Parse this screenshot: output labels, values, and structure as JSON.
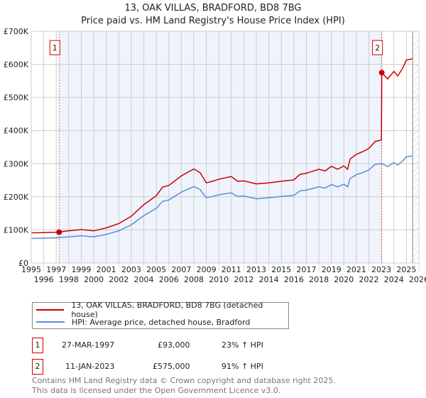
{
  "chart_data": {
    "type": "line",
    "title": "13, OAK VILLAS, BRADFORD, BD8 7BG",
    "subtitle": "Price paid vs. HM Land Registry's House Price Index (HPI)",
    "xlim": [
      1995,
      2026
    ],
    "ylim": [
      0,
      700000
    ],
    "x_ticks": [
      "1995",
      "1996",
      "1997",
      "1998",
      "1999",
      "2000",
      "2001",
      "2002",
      "2003",
      "2004",
      "2005",
      "2006",
      "2007",
      "2008",
      "2009",
      "2010",
      "2011",
      "2012",
      "2013",
      "2014",
      "2015",
      "2016",
      "2017",
      "2018",
      "2019",
      "2020",
      "2021",
      "2022",
      "2023",
      "2024",
      "2025",
      "2026"
    ],
    "y_ticks": [
      {
        "v": 0,
        "label": "£0"
      },
      {
        "v": 100000,
        "label": "£100K"
      },
      {
        "v": 200000,
        "label": "£200K"
      },
      {
        "v": 300000,
        "label": "£300K"
      },
      {
        "v": 400000,
        "label": "£400K"
      },
      {
        "v": 500000,
        "label": "£500K"
      },
      {
        "v": 600000,
        "label": "£600K"
      },
      {
        "v": 700000,
        "label": "£700K"
      }
    ],
    "grid": true,
    "x": [
      1995,
      1996,
      1997,
      1998,
      1999,
      2000,
      2001,
      2002,
      2003,
      2004,
      2005,
      2005.5,
      2006,
      2007,
      2008,
      2008.5,
      2009,
      2009.5,
      2010,
      2011,
      2011.5,
      2012,
      2013,
      2014,
      2015,
      2016,
      2016.5,
      2017,
      2018,
      2018.5,
      2019,
      2019.5,
      2020,
      2020.3,
      2020.5,
      2021,
      2021.5,
      2022,
      2022.5,
      2023.0,
      2023.03,
      2023.5,
      2024,
      2024.3,
      2024.7,
      2025,
      2025.5
    ],
    "series": [
      {
        "name": "13, OAK VILLAS, BRADFORD, BD8 7BG (detached house)",
        "color": "#cc0000",
        "values": [
          91,
          92,
          93,
          97,
          101,
          97,
          106,
          119,
          141,
          176,
          203,
          229,
          234,
          263,
          284,
          273,
          242,
          247,
          253,
          261,
          247,
          248,
          239,
          242,
          247,
          251,
          268,
          271,
          283,
          278,
          292,
          283,
          293,
          283,
          314,
          328,
          336,
          346,
          367,
          372,
          575,
          556,
          579,
          565,
          588,
          613,
          617
        ]
      },
      {
        "name": "HPI: Average price, detached house, Bradford",
        "color": "#5b8fd4",
        "values": [
          74,
          75,
          76,
          79,
          82,
          79,
          86,
          97,
          115,
          143,
          165,
          186,
          190,
          214,
          231,
          222,
          197,
          201,
          206,
          212,
          201,
          202,
          194,
          197,
          201,
          204,
          218,
          220,
          230,
          226,
          237,
          230,
          238,
          230,
          255,
          267,
          273,
          281,
          298,
          300,
          301,
          291,
          303,
          296,
          308,
          321,
          323
        ]
      }
    ],
    "value_unit": "thousands GBP",
    "sales": [
      {
        "id": "1",
        "year": 1997.23,
        "price": 93000,
        "date": "27-MAR-1997",
        "price_label": "£93,000",
        "hpi": "23% ↑ HPI"
      },
      {
        "id": "2",
        "year": 2023.03,
        "price": 575000,
        "date": "11-JAN-2023",
        "price_label": "£575,000",
        "hpi": "91% ↑ HPI"
      }
    ],
    "legend_placement": "bottom"
  },
  "footer": {
    "line1": "Contains HM Land Registry data © Crown copyright and database right 2025.",
    "line2": "This data is licensed under the Open Government Licence v3.0."
  }
}
